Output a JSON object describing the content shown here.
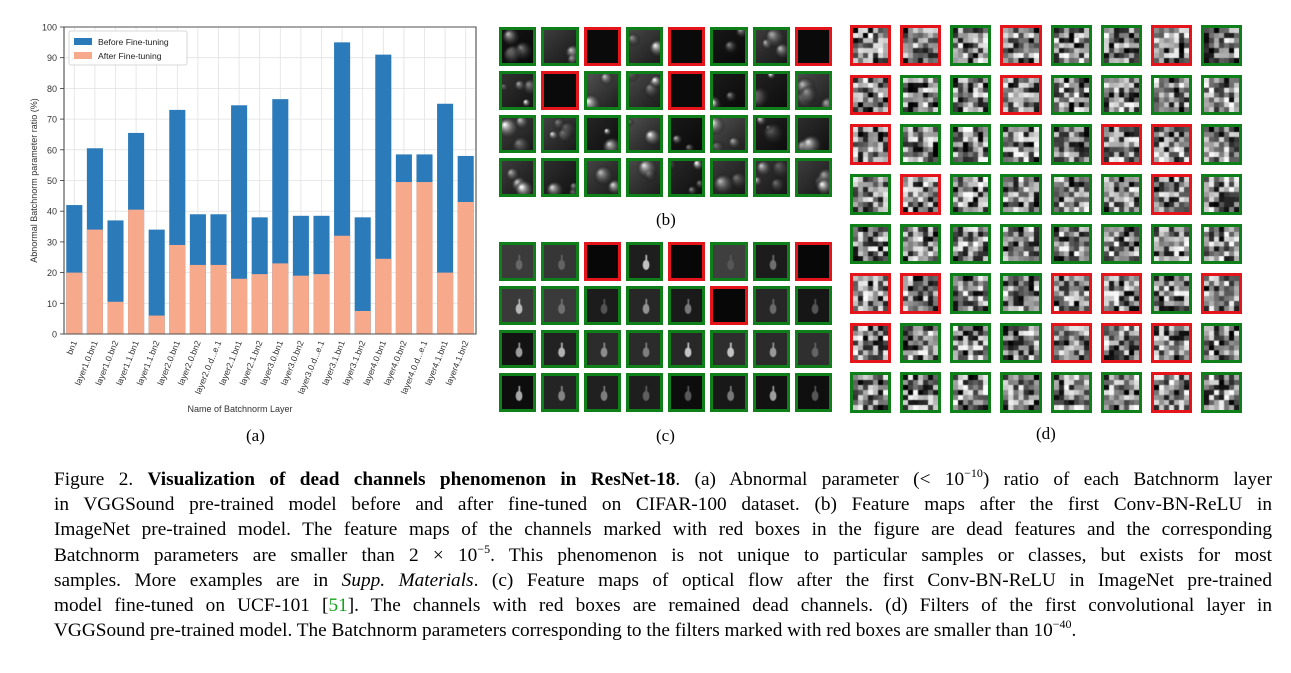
{
  "chart_data": {
    "type": "bar",
    "stacked_overlay": true,
    "ylabel": "Abnormal Batchnorm parameter ratio (%)",
    "xlabel": "Name of Batchnorm Layer",
    "ylim": [
      0,
      100
    ],
    "yticks": [
      0,
      10,
      20,
      30,
      40,
      50,
      60,
      70,
      80,
      90,
      100
    ],
    "grid": true,
    "legend_position": "top-left",
    "categories": [
      "bn1",
      "layer1.0.bn1",
      "layer1.0.bn2",
      "layer1.1.bn1",
      "layer1.1.bn2",
      "layer2.0.bn1",
      "layer2.0.bn2",
      "layer2.0.d...e.1",
      "layer2.1.bn1",
      "layer2.1.bn2",
      "layer3.0.bn1",
      "layer3.0.bn2",
      "layer3.0.d...e.1",
      "layer3.1.bn1",
      "layer3.1.bn2",
      "layer4.0.bn1",
      "layer4.0.bn2",
      "layer4.0.d...e.1",
      "layer4.1.bn1",
      "layer4.1.bn2"
    ],
    "series": [
      {
        "name": "Before Fine-tuning",
        "color": "#2b7bba",
        "values": [
          42,
          60.5,
          37,
          65.5,
          34,
          73,
          39,
          39,
          74.5,
          38,
          76.5,
          38.5,
          38.5,
          95,
          38,
          91,
          58.5,
          58.5,
          75,
          58
        ]
      },
      {
        "name": "After Fine-tuning",
        "color": "#f7a98b",
        "values": [
          20,
          34,
          10.5,
          40.5,
          6,
          29,
          22.5,
          22.5,
          18,
          19.5,
          23,
          19,
          19.5,
          32,
          7.5,
          24.5,
          49.5,
          49.5,
          20,
          43
        ]
      }
    ]
  },
  "labels": {
    "a": "(a)",
    "b": "(b)",
    "c": "(c)",
    "d": "(d)"
  },
  "panels": {
    "b": {
      "rows": 4,
      "cols": 8,
      "dead": [
        [
          0,
          2
        ],
        [
          0,
          4
        ],
        [
          0,
          7
        ],
        [
          1,
          1
        ],
        [
          1,
          4
        ]
      ],
      "style": "feature"
    },
    "c": {
      "rows": 4,
      "cols": 8,
      "dead": [
        [
          0,
          2
        ],
        [
          0,
          4
        ],
        [
          0,
          7
        ],
        [
          1,
          5
        ]
      ],
      "style": "flow"
    },
    "d": {
      "rows": 8,
      "cols": 8,
      "dead": [
        [
          0,
          0
        ],
        [
          0,
          1
        ],
        [
          0,
          3
        ],
        [
          0,
          6
        ],
        [
          1,
          0
        ],
        [
          1,
          3
        ],
        [
          2,
          0
        ],
        [
          2,
          5
        ],
        [
          2,
          6
        ],
        [
          3,
          1
        ],
        [
          3,
          6
        ],
        [
          5,
          0
        ],
        [
          5,
          1
        ],
        [
          5,
          4
        ],
        [
          5,
          5
        ],
        [
          5,
          7
        ],
        [
          6,
          0
        ],
        [
          6,
          4
        ],
        [
          6,
          5
        ],
        [
          6,
          6
        ],
        [
          7,
          6
        ]
      ],
      "style": "filter"
    }
  },
  "caption": {
    "fig": "Figure 2.",
    "title": "Visualization of dead channels phenomenon in ResNet-18",
    "l1_rest": ". (a) Abnormal parameter (< 10",
    "l1_sup": "−10",
    "l1_end": ") ratio of each Batchnorm layer",
    "l2": "in VGGSound pre-trained model before and after fine-tuned on CIFAR-100 dataset. (b) Feature maps after the first Conv-BN-ReLU in",
    "l3": "ImageNet pre-trained model. The feature maps of the channels marked with red boxes in the figure are dead features and the corresponding",
    "l4_a": "Batchnorm parameters are smaller than 2 × 10",
    "l4_sup": "−5",
    "l4_b": ". This phenomenon is not unique to particular samples or classes, but exists for most",
    "l5_a": "samples. More examples are in ",
    "l5_i": "Supp. Materials",
    "l5_b": ". (c) Feature maps of optical flow after the first Conv-BN-ReLU in ImageNet pre-trained",
    "l6_a": "model fine-tuned on UCF-101 [",
    "l6_ref": "51",
    "l6_b": "]. The channels with red boxes are remained dead channels. (d) Filters of the first convolutional layer in",
    "l7_a": "VGGSound pre-trained model. The Batchnorm parameters corresponding to the filters marked with red boxes are smaller than 10",
    "l7_sup": "−40",
    "l7_b": "."
  }
}
